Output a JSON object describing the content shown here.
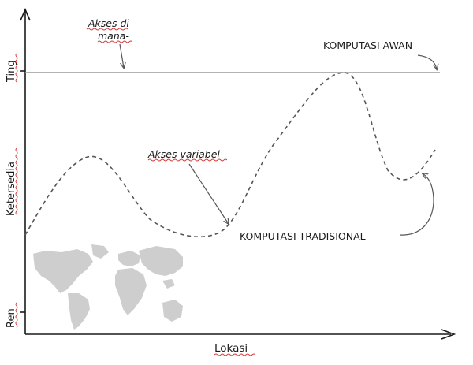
{
  "axes": {
    "y_label": "Ketersedia",
    "y_high": "Ting",
    "y_low": "Ren",
    "x_label": "Lokasi"
  },
  "annotations": {
    "access_anywhere_line1": "Akses di",
    "access_anywhere_line2": "mana-",
    "variable_access": "Akses variabel"
  },
  "series": {
    "cloud": "KOMPUTASI AWAN",
    "traditional": "KOMPUTASI TRADISIONAL"
  },
  "decor": {
    "world_map": "world-map-icon"
  },
  "colors": {
    "axis": "#1a1a1a",
    "cloud_line": "#9a9a9a",
    "traditional_curve": "#555555",
    "map": "#c8c8c8",
    "spellcheck": "#d23a3a"
  }
}
